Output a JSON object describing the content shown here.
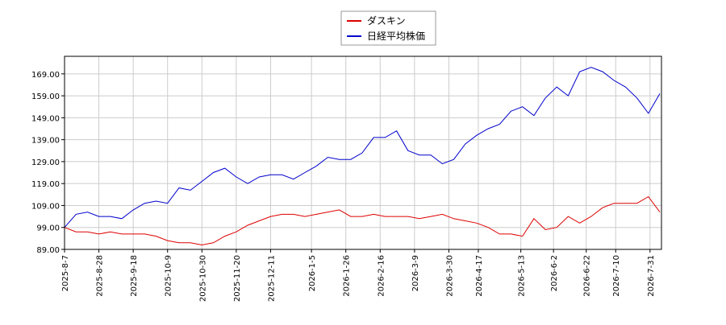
{
  "chart_data": {
    "type": "line",
    "x": [
      "2025-8-7",
      "2025-8-14",
      "2025-8-21",
      "2025-8-28",
      "2025-9-4",
      "2025-9-11",
      "2025-9-18",
      "2025-9-25",
      "2025-10-2",
      "2025-10-9",
      "2025-10-16",
      "2025-10-23",
      "2025-10-30",
      "2025-11-6",
      "2025-11-13",
      "2025-11-20",
      "2025-11-27",
      "2025-12-4",
      "2025-12-11",
      "2025-12-18",
      "2025-12-25",
      "2026-1-1",
      "2026-1-8",
      "2026-1-15",
      "2026-1-22",
      "2026-1-29",
      "2026-2-5",
      "2026-2-12",
      "2026-2-19",
      "2026-2-26",
      "2026-3-5",
      "2026-3-12",
      "2026-3-19",
      "2026-3-26",
      "2026-4-2",
      "2026-4-9",
      "2026-4-16",
      "2026-4-23",
      "2026-4-30",
      "2026-5-7",
      "2026-5-14",
      "2026-5-21",
      "2026-5-28",
      "2026-6-4",
      "2026-6-11",
      "2026-6-18",
      "2026-6-25",
      "2026-7-2",
      "2026-7-9",
      "2026-7-16",
      "2026-7-23",
      "2026-7-30",
      "2026-8-6"
    ],
    "series": [
      {
        "name": "ダスキン",
        "color": "#dd0000",
        "values": [
          99,
          97,
          97,
          96,
          97,
          96,
          96,
          96,
          95,
          93,
          92,
          92,
          91,
          92,
          95,
          97,
          100,
          102,
          104,
          105,
          105,
          104,
          105,
          106,
          107,
          104,
          104,
          105,
          104,
          104,
          104,
          103,
          104,
          105,
          103,
          102,
          101,
          99,
          96,
          96,
          95,
          103,
          98,
          99,
          104,
          101,
          104,
          108,
          110,
          110,
          110,
          113,
          106
        ]
      },
      {
        "name": "日経平均株価",
        "color": "#0000cc",
        "values": [
          99,
          105,
          106,
          104,
          104,
          103,
          107,
          110,
          111,
          110,
          117,
          116,
          120,
          124,
          126,
          122,
          119,
          122,
          123,
          123,
          121,
          124,
          127,
          131,
          130,
          130,
          133,
          140,
          140,
          143,
          134,
          132,
          132,
          128,
          130,
          137,
          141,
          144,
          146,
          152,
          154,
          150,
          158,
          163,
          159,
          170,
          172,
          170,
          166,
          163,
          158,
          151,
          160
        ]
      }
    ],
    "xlim": [
      "2025-8-7",
      "2026-8-7"
    ],
    "xticks": [
      "2025-8-7",
      "2025-8-28",
      "2025-9-18",
      "2025-10-9",
      "2025-10-30",
      "2025-11-20",
      "2025-12-11",
      "2026-1-5",
      "2026-1-26",
      "2026-2-16",
      "2026-3-9",
      "2026-3-30",
      "2026-4-17",
      "2026-5-13",
      "2026-6-2",
      "2026-6-22",
      "2026-7-10",
      "2026-7-31"
    ],
    "ylim": [
      89,
      177
    ],
    "yticks": [
      {
        "value": 89,
        "label": "89.00"
      },
      {
        "value": 99,
        "label": "99.00"
      },
      {
        "value": 109,
        "label": "109.00"
      },
      {
        "value": 119,
        "label": "119.00"
      },
      {
        "value": 129,
        "label": "129.00"
      },
      {
        "value": 139,
        "label": "139.00"
      },
      {
        "value": 149,
        "label": "149.00"
      },
      {
        "value": 159,
        "label": "159.00"
      },
      {
        "value": 169,
        "label": "169.00"
      }
    ],
    "grid": true
  }
}
